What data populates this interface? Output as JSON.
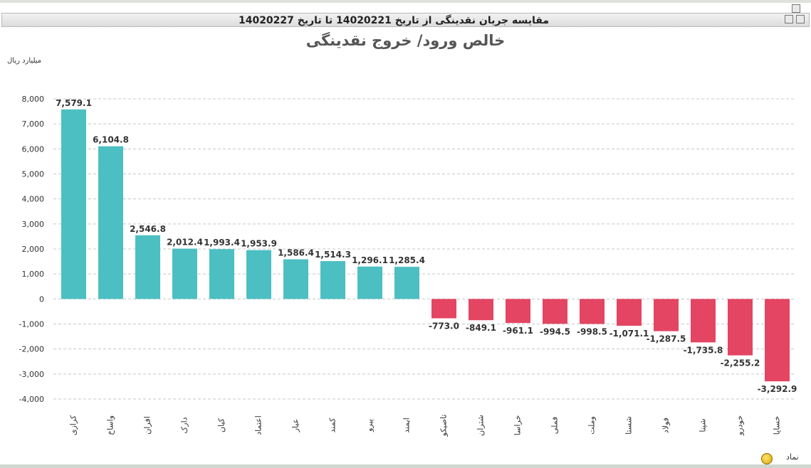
{
  "window": {
    "title": "مقایسه جریان نقدینگی از تاریخ 14020221 تا تاریخ 14020227"
  },
  "chart_data": {
    "type": "bar",
    "title": "خالص ورود/ خروج نقدینگی",
    "ylabel": "میلیارد ریال",
    "xlabel": "نماد",
    "ylim": [
      -4000,
      8000
    ],
    "yticks": [
      8000,
      7000,
      6000,
      5000,
      4000,
      3000,
      2000,
      1000,
      0,
      -1000,
      -2000,
      -3000,
      -4000
    ],
    "ytick_labels": [
      "8,000",
      "7,000",
      "6,000",
      "5,000",
      "4,000",
      "3,000",
      "2,000",
      "1,000",
      "0",
      "-1,000",
      "-2,000",
      "-3,000",
      "-4,000"
    ],
    "grid": true,
    "categories": [
      "کرازی",
      "واساخ",
      "افران",
      "دارک",
      "کیان",
      "اعتماد",
      "عیار",
      "کمند",
      "پیرو",
      "ایمند",
      "تاصیکو",
      "شتران",
      "خراسا",
      "فملی",
      "وملت",
      "شستا",
      "فولاد",
      "شپنا",
      "خودرو",
      "خساپا"
    ],
    "values": [
      7579.1,
      6104.8,
      2546.8,
      2012.4,
      1993.4,
      1953.9,
      1586.4,
      1514.3,
      1296.1,
      1285.4,
      -773.0,
      -849.1,
      -961.1,
      -994.5,
      -998.5,
      -1071.1,
      -1287.5,
      -1735.8,
      -2255.2,
      -3292.9
    ],
    "value_labels": [
      "7,579.1",
      "6,104.8",
      "2,546.8",
      "2,012.4",
      "1,993.4",
      "1,953.9",
      "1,586.4",
      "1,514.3",
      "1,296.1",
      "1,285.4",
      "-773.0",
      "-849.1",
      "-961.1",
      "-994.5",
      "-998.5",
      "-1,071.1",
      "-1,287.5",
      "-1,735.8",
      "-2,255.2",
      "-3,292.9"
    ],
    "colors": {
      "positive": "#4cbfc3",
      "negative": "#e34563"
    }
  }
}
